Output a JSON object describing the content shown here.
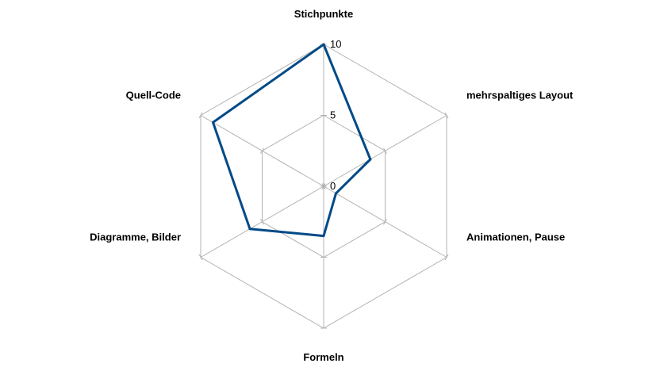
{
  "chart_data": {
    "type": "radar",
    "categories": [
      "Stichpunkte",
      "mehrspaltiges Layout",
      "Animationen, Pause",
      "Formeln",
      "Diagramme, Bilder",
      "Quell-Code"
    ],
    "series": [
      {
        "values": [
          10,
          3.8,
          1,
          3.5,
          6,
          9
        ]
      }
    ],
    "rlim": [
      0,
      10
    ],
    "ticks": [
      "0",
      "5",
      "10"
    ],
    "tick_values": [
      0,
      5,
      10
    ],
    "grid": true,
    "legend": "none",
    "colors": {
      "series": "#004a87",
      "grid": "#b3b3b3"
    }
  }
}
